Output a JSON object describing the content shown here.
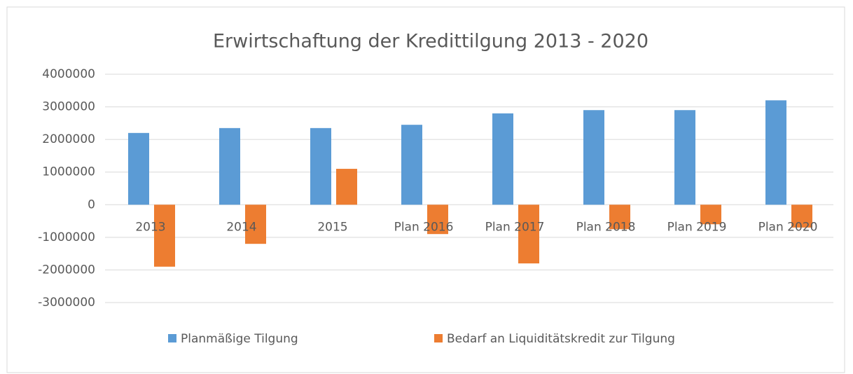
{
  "chart_data": {
    "type": "bar",
    "title": "Erwirtschaftung der Kredittilgung 2013 - 2020",
    "categories": [
      "2013",
      "2014",
      "2015",
      "Plan 2016",
      "Plan 2017",
      "Plan 2018",
      "Plan 2019",
      "Plan 2020"
    ],
    "series": [
      {
        "name": "Planmäßige Tilgung",
        "color": "#5b9bd5",
        "values": [
          2200000,
          2350000,
          2350000,
          2450000,
          2800000,
          2900000,
          2900000,
          3200000
        ]
      },
      {
        "name": "Bedarf an Liquiditätskredit  zur Tilgung",
        "color": "#ed7d31",
        "values": [
          -1900000,
          -1200000,
          1100000,
          -900000,
          -1800000,
          -750000,
          -600000,
          -700000
        ]
      }
    ],
    "ylim": [
      -3000000,
      4000000
    ],
    "yticks": [
      -3000000,
      -2000000,
      -1000000,
      0,
      1000000,
      2000000,
      3000000,
      4000000
    ],
    "grid": true,
    "legend": "bottom"
  }
}
